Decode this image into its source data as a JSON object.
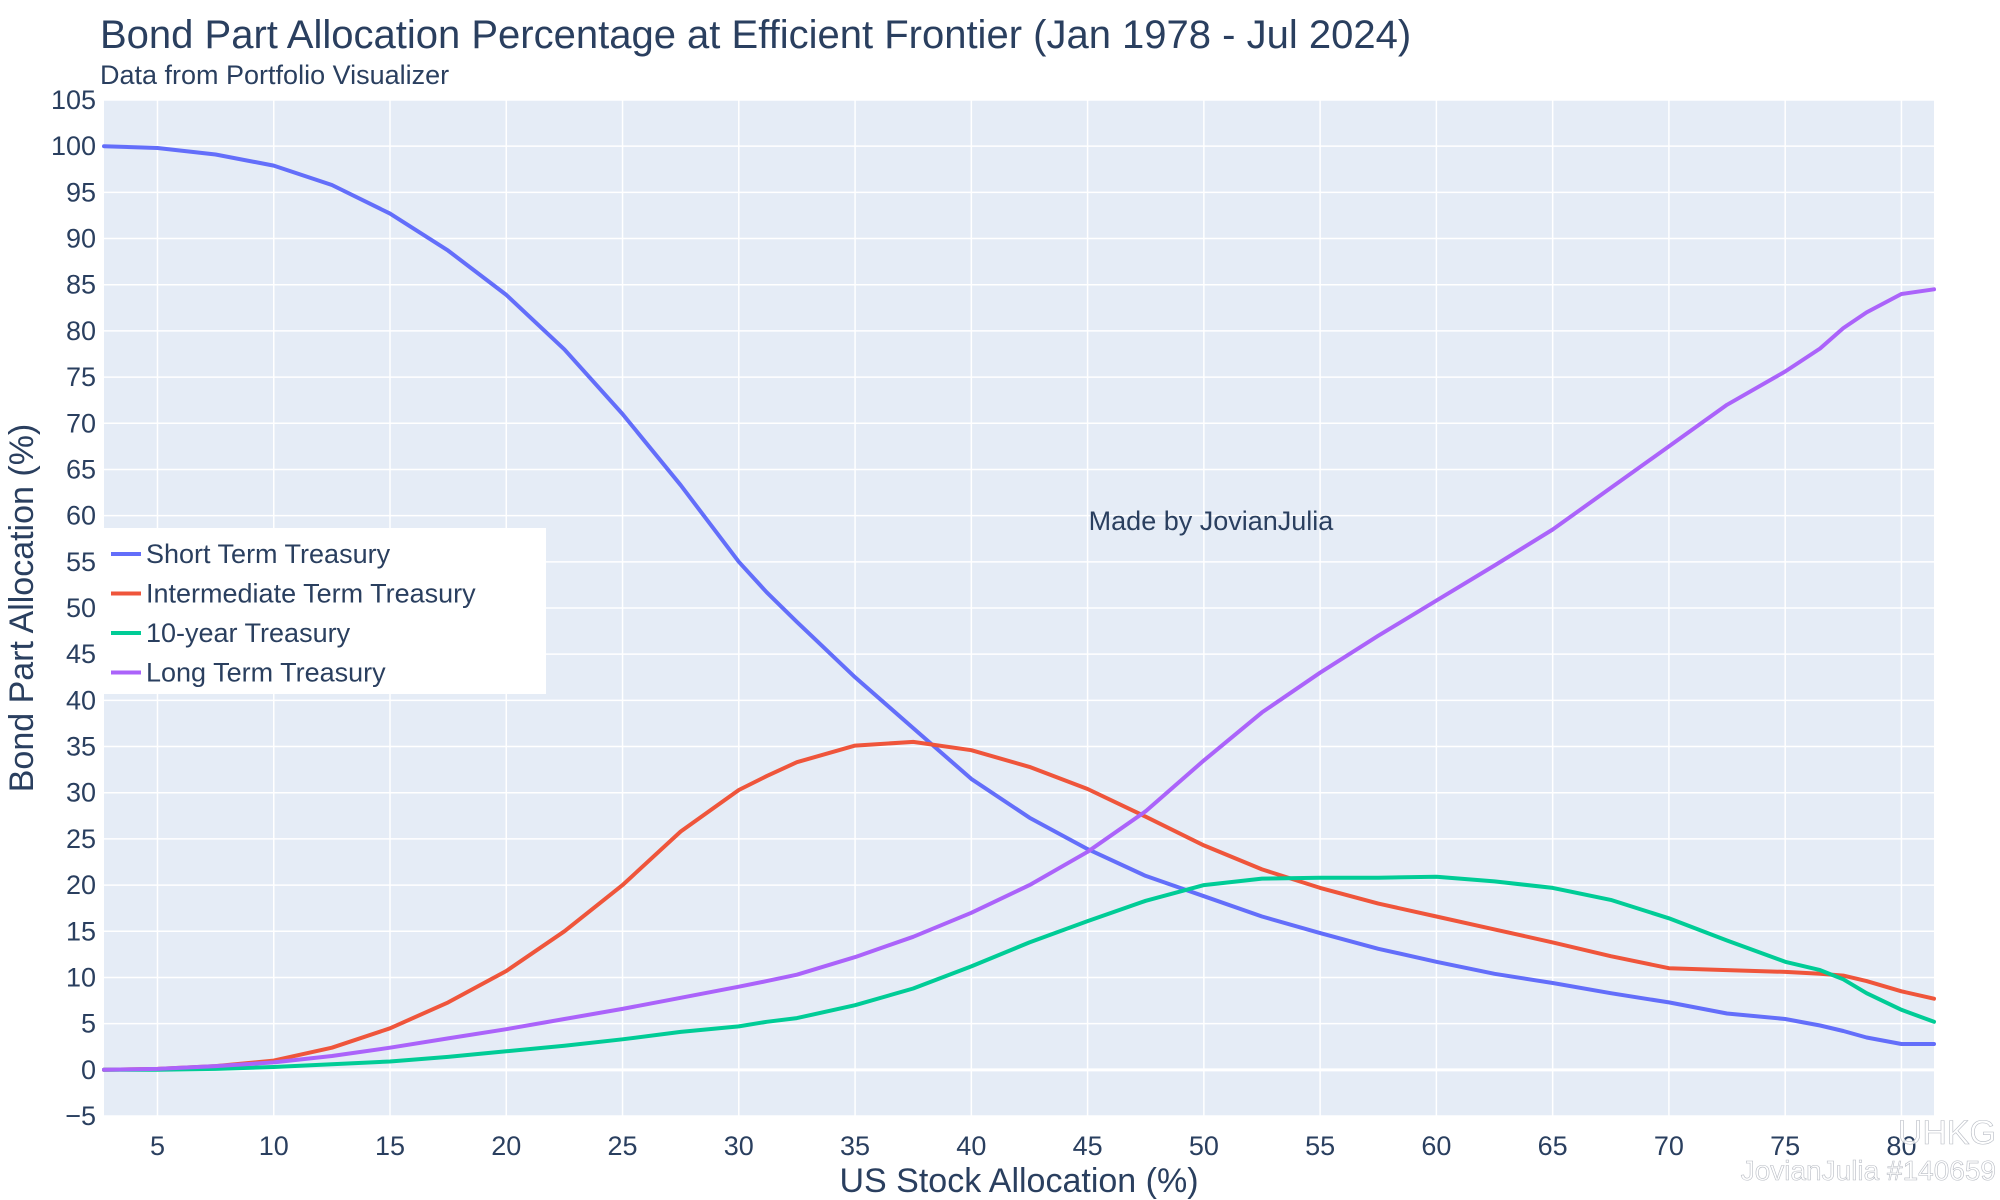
{
  "chart_data": {
    "type": "line",
    "title": "Bond Part Allocation Percentage at Efficient Frontier (Jan 1978 - Jul 2024)",
    "subtitle": "Data from Portfolio Visualizer",
    "xlabel": "US Stock Allocation (%)",
    "ylabel": "Bond Part Allocation (%)",
    "xlim": [
      2.7,
      81.4
    ],
    "ylim": [
      -5,
      105
    ],
    "x_ticks": [
      5,
      10,
      15,
      20,
      25,
      30,
      35,
      40,
      45,
      50,
      55,
      60,
      65,
      70,
      75,
      80
    ],
    "y_ticks": [
      -5,
      0,
      5,
      10,
      15,
      20,
      25,
      30,
      35,
      40,
      45,
      50,
      55,
      60,
      65,
      70,
      75,
      80,
      85,
      90,
      95,
      100,
      105
    ],
    "grid": true,
    "legend_position": "left",
    "annotation": "Made by JovianJulia",
    "x": [
      2.7,
      5,
      7.5,
      10,
      12.5,
      15,
      17.5,
      20,
      22.5,
      25,
      27.5,
      30,
      31.2,
      32.5,
      35,
      37.5,
      40,
      42.5,
      45,
      47.5,
      50,
      52.5,
      55,
      57.5,
      60,
      62.5,
      65,
      67.5,
      70,
      72.5,
      75,
      76.5,
      77.5,
      78.5,
      80,
      81.4
    ],
    "series": [
      {
        "name": "Short Term Treasury",
        "color": "#636efa",
        "values": [
          100.0,
          99.8,
          99.1,
          97.9,
          95.8,
          92.7,
          88.7,
          83.9,
          78.0,
          71.0,
          63.3,
          55.0,
          51.7,
          48.5,
          42.5,
          37.0,
          31.5,
          27.3,
          23.9,
          21.0,
          18.8,
          16.6,
          14.8,
          13.1,
          11.7,
          10.4,
          9.4,
          8.3,
          7.3,
          6.1,
          5.5,
          4.8,
          4.2,
          3.5,
          2.8,
          2.8
        ]
      },
      {
        "name": "Intermediate Term Treasury",
        "color": "#ef553b",
        "values": [
          0.0,
          0.1,
          0.4,
          1.0,
          2.4,
          4.5,
          7.3,
          10.7,
          15.0,
          20.0,
          25.8,
          30.3,
          31.8,
          33.3,
          35.1,
          35.5,
          34.6,
          32.8,
          30.4,
          27.4,
          24.3,
          21.7,
          19.7,
          18.0,
          16.6,
          15.2,
          13.8,
          12.3,
          11.0,
          10.8,
          10.6,
          10.4,
          10.2,
          9.6,
          8.5,
          7.7
        ]
      },
      {
        "name": "10-year Treasury",
        "color": "#00cc96",
        "values": [
          0.0,
          0.0,
          0.1,
          0.3,
          0.6,
          0.9,
          1.4,
          2.0,
          2.6,
          3.3,
          4.1,
          4.7,
          5.2,
          5.6,
          7.0,
          8.8,
          11.2,
          13.8,
          16.1,
          18.3,
          20.0,
          20.7,
          20.8,
          20.8,
          20.9,
          20.4,
          19.7,
          18.4,
          16.4,
          14.0,
          11.7,
          10.8,
          9.8,
          8.3,
          6.5,
          5.2
        ]
      },
      {
        "name": "Long Term Treasury",
        "color": "#ab63fa",
        "values": [
          0.0,
          0.1,
          0.4,
          0.8,
          1.5,
          2.4,
          3.4,
          4.4,
          5.5,
          6.6,
          7.8,
          9.0,
          9.6,
          10.3,
          12.2,
          14.4,
          17.0,
          20.0,
          23.6,
          28.0,
          33.5,
          38.7,
          43.0,
          47.0,
          50.8,
          54.6,
          58.5,
          63.0,
          67.5,
          72.0,
          75.6,
          78.1,
          80.3,
          82.0,
          84.0,
          84.5
        ]
      }
    ]
  },
  "watermark": {
    "line1": "UHKG",
    "line2": "JovianJulia #140659"
  }
}
